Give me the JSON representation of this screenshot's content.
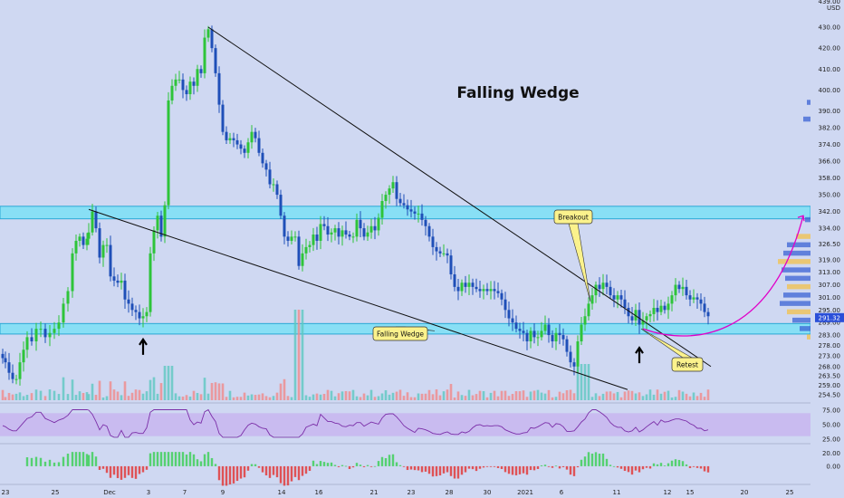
{
  "chart_data": {
    "type": "candlestick",
    "title": "Falling Wedge",
    "currency": "USD",
    "yticks": [
      430.0,
      420.0,
      410.0,
      400.0,
      390.0,
      382.0,
      374.0,
      366.0,
      358.0,
      350.0,
      342.0,
      334.0,
      326.5,
      319.0,
      313.0,
      307.0,
      301.0,
      295.0,
      289.0,
      283.0,
      278.0,
      273.0,
      268.0,
      263.5,
      259.0,
      254.5
    ],
    "yticks_top_partial": "439.00",
    "ylim": [
      252.0,
      444.0
    ],
    "last_price": "291.32",
    "xticks": [
      "23",
      "25",
      "Dec",
      "3",
      "7",
      "9",
      "14",
      "16",
      "21",
      "23",
      "28",
      "30",
      "2021",
      "6",
      "11",
      "12",
      "15",
      "20",
      "25"
    ],
    "price_path": [
      [
        0,
        274
      ],
      [
        3,
        272
      ],
      [
        6,
        270
      ],
      [
        10,
        265
      ],
      [
        14,
        262
      ],
      [
        18,
        262
      ],
      [
        22,
        270
      ],
      [
        26,
        276
      ],
      [
        30,
        282
      ],
      [
        35,
        280
      ],
      [
        40,
        286
      ],
      [
        45,
        286
      ],
      [
        50,
        282
      ],
      [
        55,
        284
      ],
      [
        60,
        286
      ],
      [
        65,
        289
      ],
      [
        70,
        298
      ],
      [
        75,
        304
      ],
      [
        80,
        322
      ],
      [
        84,
        328
      ],
      [
        88,
        330
      ],
      [
        92,
        326
      ],
      [
        96,
        329
      ],
      [
        98,
        332
      ],
      [
        102,
        342
      ],
      [
        106,
        334
      ],
      [
        110,
        320
      ],
      [
        114,
        326
      ],
      [
        118,
        326
      ],
      [
        122,
        311
      ],
      [
        126,
        309
      ],
      [
        130,
        308
      ],
      [
        134,
        309
      ],
      [
        138,
        300
      ],
      [
        142,
        298
      ],
      [
        146,
        295
      ],
      [
        150,
        294
      ],
      [
        154,
        291
      ],
      [
        158,
        292
      ],
      [
        162,
        294
      ],
      [
        166,
        322
      ],
      [
        170,
        333
      ],
      [
        174,
        340
      ],
      [
        178,
        330
      ],
      [
        182,
        345
      ],
      [
        186,
        395
      ],
      [
        190,
        402
      ],
      [
        194,
        405
      ],
      [
        198,
        405
      ],
      [
        202,
        400
      ],
      [
        206,
        398
      ],
      [
        210,
        404
      ],
      [
        214,
        402
      ],
      [
        218,
        410
      ],
      [
        222,
        408
      ],
      [
        226,
        425
      ],
      [
        230,
        429
      ],
      [
        234,
        420
      ],
      [
        238,
        408
      ],
      [
        242,
        393
      ],
      [
        246,
        380
      ],
      [
        250,
        376
      ],
      [
        254,
        377
      ],
      [
        258,
        376
      ],
      [
        262,
        374
      ],
      [
        266,
        372
      ],
      [
        270,
        370
      ],
      [
        274,
        375
      ],
      [
        278,
        380
      ],
      [
        282,
        377
      ],
      [
        286,
        370
      ],
      [
        290,
        365
      ],
      [
        294,
        362
      ],
      [
        298,
        355
      ],
      [
        302,
        355
      ],
      [
        306,
        350
      ],
      [
        310,
        340
      ],
      [
        314,
        330
      ],
      [
        318,
        328
      ],
      [
        322,
        330
      ],
      [
        326,
        330
      ],
      [
        330,
        316
      ],
      [
        334,
        322
      ],
      [
        338,
        325
      ],
      [
        342,
        326
      ],
      [
        346,
        331
      ],
      [
        350,
        328
      ],
      [
        354,
        336
      ],
      [
        358,
        335
      ],
      [
        362,
        331
      ],
      [
        366,
        332
      ],
      [
        370,
        334
      ],
      [
        374,
        330
      ],
      [
        378,
        333
      ],
      [
        382,
        331
      ],
      [
        386,
        330
      ],
      [
        390,
        330
      ],
      [
        394,
        338
      ],
      [
        398,
        334
      ],
      [
        402,
        330
      ],
      [
        406,
        332
      ],
      [
        410,
        335
      ],
      [
        414,
        333
      ],
      [
        418,
        339
      ],
      [
        422,
        347
      ],
      [
        426,
        350
      ],
      [
        430,
        353
      ],
      [
        434,
        356
      ],
      [
        438,
        348
      ],
      [
        442,
        346
      ],
      [
        446,
        345
      ],
      [
        450,
        343
      ],
      [
        454,
        342
      ],
      [
        458,
        341
      ],
      [
        462,
        341
      ],
      [
        466,
        338
      ],
      [
        470,
        335
      ],
      [
        474,
        330
      ],
      [
        478,
        325
      ],
      [
        482,
        323
      ],
      [
        486,
        322
      ],
      [
        490,
        322
      ],
      [
        494,
        321
      ],
      [
        498,
        312
      ],
      [
        502,
        306
      ],
      [
        506,
        304
      ],
      [
        510,
        308
      ],
      [
        514,
        306
      ],
      [
        518,
        308
      ],
      [
        522,
        306
      ],
      [
        526,
        305
      ],
      [
        530,
        304
      ],
      [
        534,
        305
      ],
      [
        538,
        304
      ],
      [
        542,
        305
      ],
      [
        546,
        304
      ],
      [
        550,
        303
      ],
      [
        554,
        300
      ],
      [
        558,
        295
      ],
      [
        562,
        291
      ],
      [
        566,
        289
      ],
      [
        570,
        286
      ],
      [
        574,
        285
      ],
      [
        578,
        284
      ],
      [
        582,
        280
      ],
      [
        586,
        285
      ],
      [
        590,
        282
      ],
      [
        594,
        282
      ],
      [
        598,
        285
      ],
      [
        602,
        288
      ],
      [
        606,
        283
      ],
      [
        610,
        280
      ],
      [
        614,
        284
      ],
      [
        618,
        283
      ],
      [
        622,
        281
      ],
      [
        626,
        275
      ],
      [
        630,
        270
      ],
      [
        634,
        268
      ],
      [
        638,
        280
      ],
      [
        642,
        288
      ],
      [
        646,
        292
      ],
      [
        650,
        298
      ],
      [
        654,
        302
      ],
      [
        658,
        307
      ],
      [
        662,
        305
      ],
      [
        666,
        308
      ],
      [
        670,
        306
      ],
      [
        674,
        302
      ],
      [
        678,
        300
      ],
      [
        682,
        302
      ],
      [
        686,
        300
      ],
      [
        690,
        296
      ],
      [
        694,
        292
      ],
      [
        698,
        290
      ],
      [
        702,
        295
      ],
      [
        706,
        288
      ],
      [
        710,
        290
      ],
      [
        714,
        292
      ],
      [
        718,
        293
      ],
      [
        722,
        296
      ],
      [
        726,
        294
      ],
      [
        730,
        297
      ],
      [
        734,
        295
      ],
      [
        738,
        298
      ],
      [
        742,
        302
      ],
      [
        746,
        307
      ],
      [
        750,
        305
      ],
      [
        754,
        306
      ],
      [
        758,
        302
      ],
      [
        762,
        300
      ],
      [
        766,
        301
      ],
      [
        770,
        300
      ],
      [
        774,
        298
      ],
      [
        778,
        294
      ],
      [
        782,
        292
      ]
    ],
    "horizontal_zones": [
      {
        "low": 338.5,
        "high": 344.5
      },
      {
        "low": 283.5,
        "high": 288.5
      }
    ],
    "trendlines": [
      {
        "from": [
          230,
          430
        ],
        "to": [
          785,
          268
        ]
      },
      {
        "from": [
          98,
          343
        ],
        "to": [
          693,
          257
        ]
      }
    ],
    "projection_curve": {
      "from": [
        710,
        286
      ],
      "to": [
        887,
        340
      ]
    },
    "annotations": [
      {
        "label": "Falling Wedge",
        "anchor": [
          480,
          285
        ]
      },
      {
        "label": "Breakout",
        "anchor": [
          652,
          299
        ]
      },
      {
        "label": "Retest",
        "anchor": [
          708,
          286
        ]
      }
    ],
    "rsi": {
      "ylim": [
        20,
        80
      ],
      "yticks": [
        75.0,
        50.0,
        25.0
      ],
      "band": [
        30,
        70
      ]
    },
    "macd": {
      "ylim": [
        -35,
        25
      ],
      "yticks": [
        20.0,
        0.0
      ],
      "zero_tick_label": "0.00"
    }
  }
}
